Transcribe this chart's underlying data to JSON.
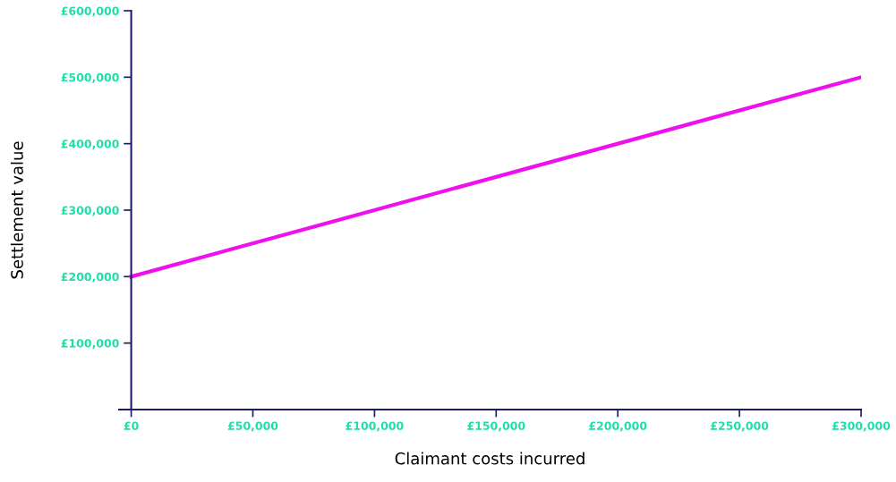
{
  "chart_data": {
    "type": "line",
    "xlabel": "Claimant costs incurred",
    "ylabel": "Settlement value",
    "x": [
      0,
      300000
    ],
    "series": [
      {
        "color": "#ee11ee",
        "values": [
          200000,
          500000
        ]
      }
    ],
    "xlim": [
      -5000,
      300000
    ],
    "xticks": [
      {
        "value": 0,
        "label": "£0"
      },
      {
        "value": 50000,
        "label": "£50,000"
      },
      {
        "value": 100000,
        "label": "£100,000"
      },
      {
        "value": 150000,
        "label": "£150,000"
      },
      {
        "value": 200000,
        "label": "£200,000"
      },
      {
        "value": 250000,
        "label": "£250,000"
      },
      {
        "value": 300000,
        "label": "£300,000"
      }
    ],
    "ylim": [
      0,
      600000
    ],
    "yticks": [
      {
        "value": 0,
        "label": null
      },
      {
        "value": 100000,
        "label": "£100,000"
      },
      {
        "value": 200000,
        "label": "£200,000"
      },
      {
        "value": 300000,
        "label": "£300,000"
      },
      {
        "value": 400000,
        "label": "£400,000"
      },
      {
        "value": 500000,
        "label": "£500,000"
      },
      {
        "value": 600000,
        "label": "£600,000"
      }
    ],
    "grid": false,
    "marker": "none",
    "line_style": "solid"
  }
}
